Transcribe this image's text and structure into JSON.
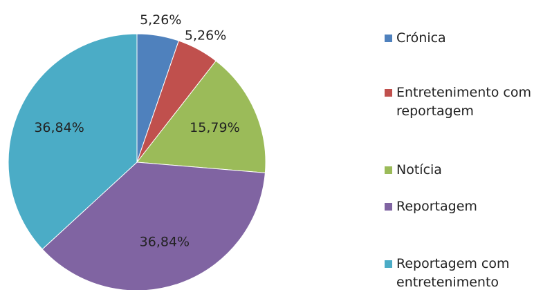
{
  "chart_data": {
    "type": "pie",
    "categories": [
      "Crónica",
      "Entretenimento com reportagem",
      "Notícia",
      "Reportagem",
      "Reportagem com entretenimento"
    ],
    "values": [
      5.26,
      5.26,
      15.79,
      36.84,
      36.84
    ],
    "value_labels": [
      "5,26%",
      "5,26%",
      "15,79%",
      "36,84%",
      "36,84%"
    ],
    "colors": [
      "#4f81bd",
      "#c0504d",
      "#9bbb59",
      "#8064a2",
      "#4bacc6"
    ],
    "legend": "right"
  }
}
